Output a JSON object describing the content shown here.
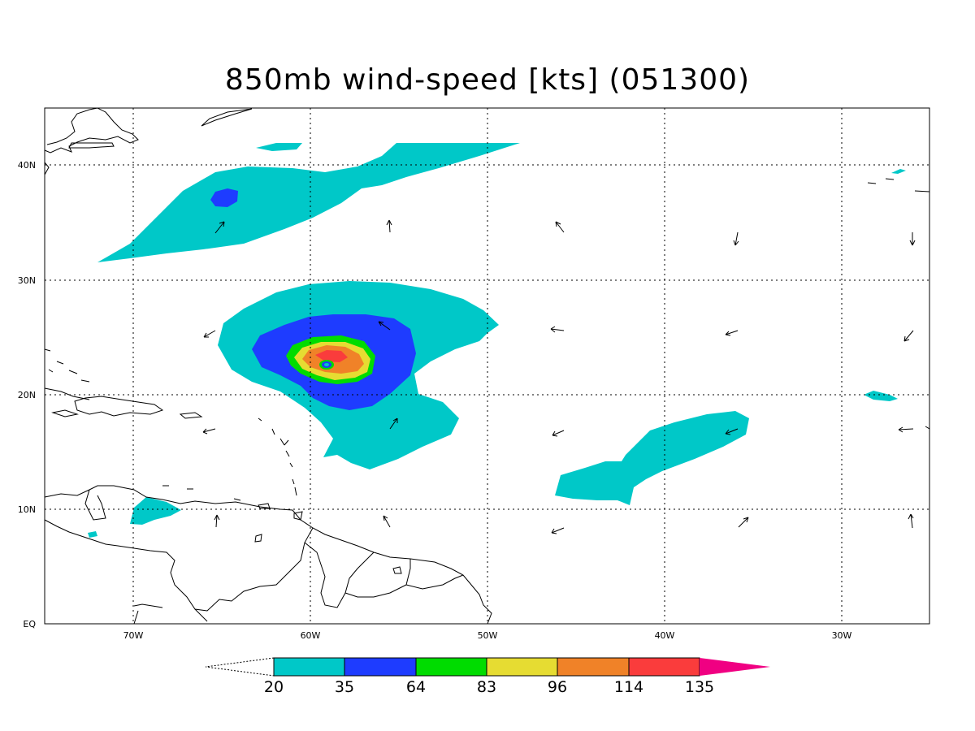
{
  "title": "850mb wind-speed [kts] (051300)",
  "map": {
    "lat_labels": [
      "EQ",
      "10N",
      "20N",
      "30N",
      "40N"
    ],
    "lon_labels": [
      "70W",
      "60W",
      "50W",
      "40W",
      "30W"
    ],
    "lon_range": [
      -75,
      -25
    ],
    "lat_range": [
      0,
      45
    ],
    "grid": true
  },
  "colorbar": {
    "labels": [
      "20",
      "35",
      "64",
      "83",
      "96",
      "114",
      "135"
    ],
    "colors": [
      "#00c8c8",
      "#1e3cff",
      "#00dc00",
      "#e6dc32",
      "#f08228",
      "#fa3c3c",
      "#f00082"
    ],
    "open_low_end": true,
    "open_high_end": true
  },
  "contour_colors": {
    "c20": "#00c8c8",
    "c35": "#1e3cff",
    "c64": "#00dc00",
    "c83": "#e6dc32",
    "c96": "#f08228",
    "c114": "#fa3c3c"
  }
}
